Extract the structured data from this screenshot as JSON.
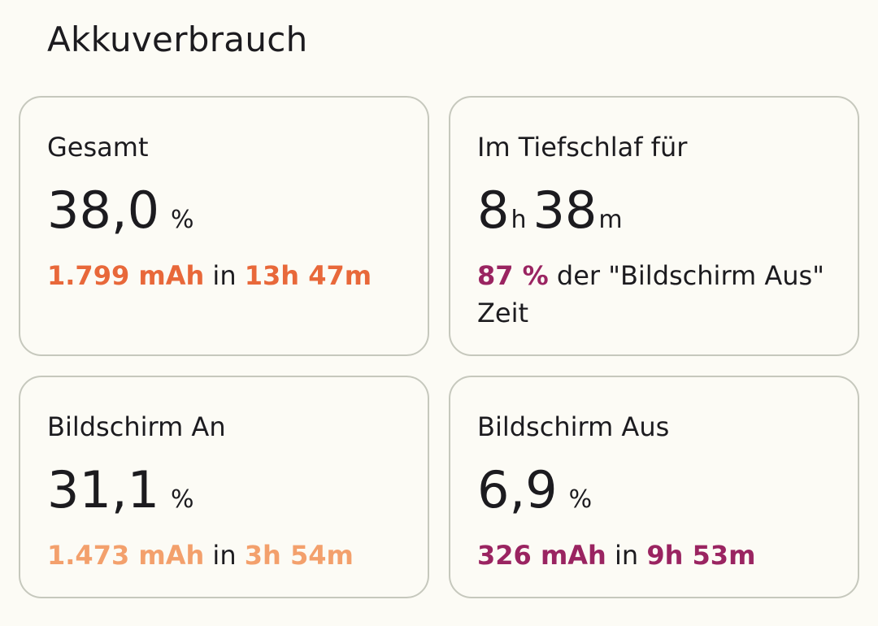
{
  "header": {
    "title": "Akkuverbrauch"
  },
  "cards": {
    "total": {
      "title": "Gesamt",
      "value": "38,0",
      "unit": "%",
      "capacity": "1.799 mAh",
      "connector": "in",
      "duration": "13h 47m"
    },
    "deep_sleep": {
      "title": "Im Tiefschlaf für",
      "hours": "8",
      "hours_unit": "h",
      "minutes": "38",
      "minutes_unit": "m",
      "percent": "87 %",
      "text": "der \"Bildschirm Aus\" Zeit"
    },
    "screen_on": {
      "title": "Bildschirm An",
      "value": "31,1",
      "unit": "%",
      "capacity": "1.473 mAh",
      "connector": "in",
      "duration": "3h 54m"
    },
    "screen_off": {
      "title": "Bildschirm Aus",
      "value": "6,9",
      "unit": "%",
      "capacity": "326 mAh",
      "connector": "in",
      "duration": "9h 53m"
    }
  },
  "colors": {
    "total_accent": "#e8683a",
    "screen_on_accent": "#f3a06c",
    "screen_off_accent": "#9a2461",
    "deep_sleep_accent": "#9a2461"
  }
}
